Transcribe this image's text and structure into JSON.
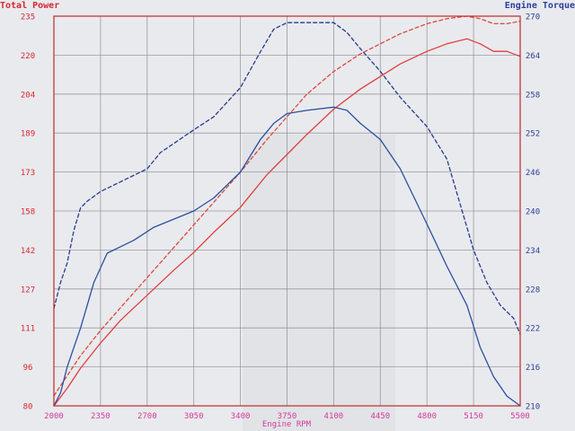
{
  "chart_data": {
    "type": "line",
    "xlabel": "Engine RPM",
    "y_left_label": "Total Power",
    "y_right_label": "Engine Torque",
    "x_ticks": [
      "2000",
      "2350",
      "2700",
      "3050",
      "3400",
      "3750",
      "4100",
      "4450",
      "4800",
      "5150",
      "5500"
    ],
    "y_left_ticks": [
      "80",
      "96",
      "111",
      "127",
      "142",
      "158",
      "173",
      "189",
      "204",
      "220",
      "235"
    ],
    "y_right_ticks": [
      "210",
      "216",
      "222",
      "228",
      "234",
      "240",
      "246",
      "252",
      "258",
      "264",
      "270"
    ],
    "xlim": [
      2000,
      5500
    ],
    "ylim_left": [
      80,
      235
    ],
    "ylim_right": [
      210,
      270
    ],
    "grid": true,
    "colors": {
      "power": "#e23c3c",
      "torque": "#2b4fa0",
      "left_axis_text": "#d8262e",
      "right_axis_text": "#2b3f98",
      "x_tick_text": "#d43a9a",
      "x_label_text": "#d43a9a",
      "frame": "#c0282c",
      "grid": "#7f8288"
    },
    "series": [
      {
        "axis": "left",
        "style": "dashed",
        "color": "#d94a3a",
        "x": [
          2000,
          2100,
          2200,
          2350,
          2500,
          2700,
          2900,
          3050,
          3200,
          3400,
          3600,
          3750,
          3900,
          4100,
          4300,
          4450,
          4600,
          4800,
          4950,
          5100,
          5200,
          5300,
          5400,
          5500
        ],
        "y": [
          84,
          92,
          100,
          110,
          119,
          131,
          143,
          152,
          161,
          173,
          186,
          195,
          204,
          213,
          220,
          224,
          228,
          232,
          234,
          235,
          234,
          232,
          232,
          233
        ]
      },
      {
        "axis": "left",
        "style": "solid",
        "color": "#e23c3c",
        "x": [
          2000,
          2100,
          2200,
          2350,
          2500,
          2700,
          2900,
          3050,
          3200,
          3400,
          3600,
          3750,
          3900,
          4100,
          4300,
          4450,
          4600,
          4800,
          4950,
          5100,
          5200,
          5300,
          5400,
          5500
        ],
        "y": [
          80,
          87,
          95,
          105,
          114,
          124,
          134,
          141,
          149,
          159,
          172,
          180,
          188,
          198,
          206,
          211,
          216,
          221,
          224,
          226,
          224,
          221,
          221,
          219
        ]
      },
      {
        "axis": "right",
        "style": "dashed",
        "color": "#283a8c",
        "x": [
          2000,
          2050,
          2100,
          2150,
          2200,
          2250,
          2350,
          2500,
          2700,
          2800,
          3050,
          3200,
          3400,
          3550,
          3650,
          3750,
          3900,
          4100,
          4200,
          4300,
          4450,
          4600,
          4800,
          4950,
          5050,
          5150,
          5250,
          5350,
          5450,
          5500
        ],
        "y": [
          225,
          229,
          232,
          237,
          240.5,
          241.5,
          243,
          244.5,
          246.5,
          249,
          252.5,
          254.5,
          259,
          264.5,
          268,
          269,
          269,
          269,
          267.5,
          265,
          261.5,
          257.5,
          253,
          248,
          241,
          234,
          229,
          225.5,
          223.5,
          221
        ]
      },
      {
        "axis": "right",
        "style": "solid",
        "color": "#2b4fa0",
        "x": [
          2000,
          2050,
          2100,
          2200,
          2300,
          2400,
          2500,
          2600,
          2750,
          3050,
          3200,
          3400,
          3550,
          3650,
          3750,
          3900,
          4100,
          4200,
          4300,
          4450,
          4600,
          4800,
          4950,
          5100,
          5200,
          5300,
          5400,
          5500
        ],
        "y": [
          210,
          212,
          216,
          222,
          229,
          233.5,
          234.5,
          235.5,
          237.5,
          240,
          242,
          246,
          251,
          253.5,
          255,
          255.5,
          256,
          255.5,
          253.5,
          251,
          246.5,
          238,
          231.5,
          225.5,
          219,
          214.5,
          211.5,
          210
        ]
      }
    ]
  }
}
